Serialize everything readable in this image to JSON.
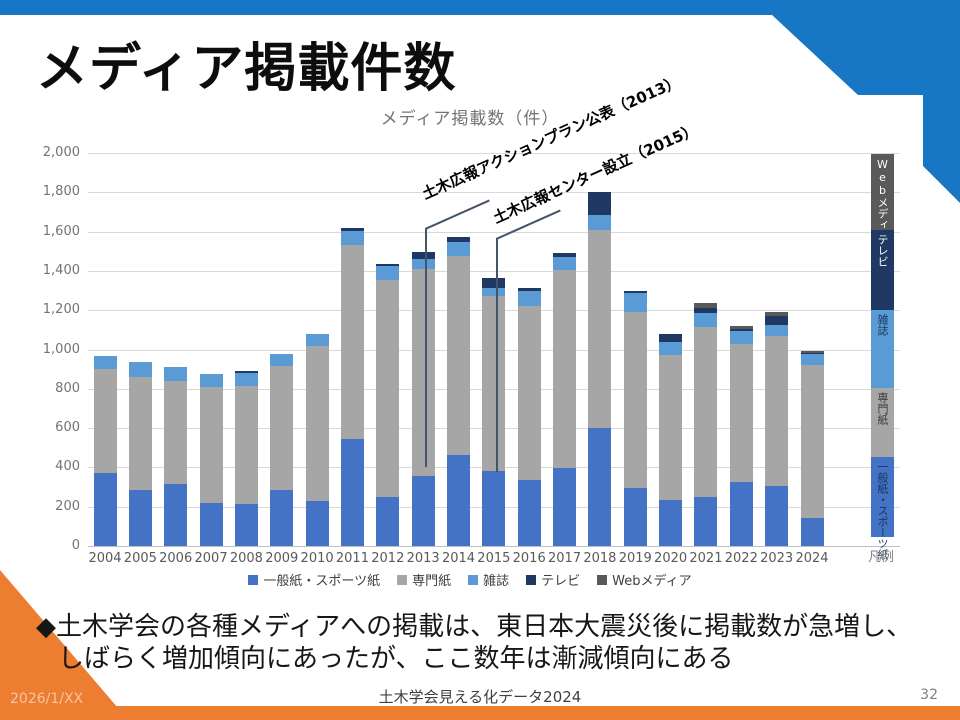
{
  "slide": {
    "title": "メディア掲載件数",
    "body": {
      "line1": "◆土木学会の各種メディアへの掲載は、東日本大震災後に掲載数が急増し、",
      "line2": "しばらく増加傾向にあったが、ここ数年は漸減傾向にある"
    },
    "footer": {
      "date": "2026/1/XX",
      "center": "土木学会見える化データ2024",
      "page_number": "32"
    },
    "accent_colors": {
      "banner_blue": "#1877c4",
      "banner_orange": "#ed7d31"
    }
  },
  "chart_data": {
    "type": "bar",
    "stacked": true,
    "title": "メディア掲載数（件）",
    "xlabel": "",
    "ylabel": "",
    "ylim": [
      0,
      2000
    ],
    "ytick_step": 200,
    "grid": true,
    "legend_position": "bottom",
    "categories": [
      "2004",
      "2005",
      "2006",
      "2007",
      "2008",
      "2009",
      "2010",
      "2011",
      "2012",
      "2013",
      "2014",
      "2015",
      "2016",
      "2017",
      "2018",
      "2019",
      "2020",
      "2021",
      "2022",
      "2023",
      "2024"
    ],
    "series": [
      {
        "name": "一般紙・スポーツ紙",
        "color": "#4472c4",
        "values": [
          370,
          285,
          315,
          220,
          215,
          285,
          230,
          545,
          250,
          355,
          465,
          380,
          335,
          395,
          600,
          295,
          235,
          250,
          325,
          305,
          140
        ]
      },
      {
        "name": "専門紙",
        "color": "#a6a6a6",
        "values": [
          530,
          575,
          525,
          590,
          600,
          630,
          790,
          985,
          1105,
          1055,
          1010,
          890,
          885,
          1010,
          1010,
          895,
          735,
          865,
          705,
          765,
          780
        ]
      },
      {
        "name": "雑誌",
        "color": "#5b9bd5",
        "values": [
          65,
          75,
          70,
          65,
          65,
          60,
          60,
          75,
          70,
          50,
          70,
          45,
          80,
          65,
          75,
          95,
          70,
          70,
          65,
          55,
          55
        ]
      },
      {
        "name": "テレビ",
        "color": "#1f3864",
        "values": [
          0,
          0,
          0,
          0,
          10,
          0,
          0,
          15,
          10,
          35,
          25,
          50,
          15,
          20,
          115,
          15,
          40,
          25,
          10,
          45,
          5
        ]
      },
      {
        "name": "Webメディア",
        "color": "#595959",
        "values": [
          0,
          0,
          0,
          0,
          0,
          0,
          0,
          0,
          0,
          0,
          0,
          0,
          0,
          0,
          0,
          0,
          0,
          25,
          15,
          20,
          10
        ]
      }
    ],
    "annotations": [
      {
        "text": "土木広報アクションプラン公表（2013）",
        "points_to_year": "2013"
      },
      {
        "text": "土木広報センター設立（2015）",
        "points_to_year": "2015"
      }
    ],
    "side_legend": {
      "caption": "凡例",
      "items": [
        {
          "label": "Webメディア",
          "color": "#595959",
          "text_color": "#ffffff"
        },
        {
          "label": "テレビ",
          "color": "#1f3864",
          "text_color": "#ffffff"
        },
        {
          "label": "雑誌",
          "color": "#5b9bd5",
          "text_color": "#17375e"
        },
        {
          "label": "専門紙",
          "color": "#a6a6a6",
          "text_color": "#3b3b3b"
        },
        {
          "label": "一般紙・スポーツ紙",
          "color": "#4472c4",
          "text_color": "#17375e"
        }
      ]
    }
  }
}
